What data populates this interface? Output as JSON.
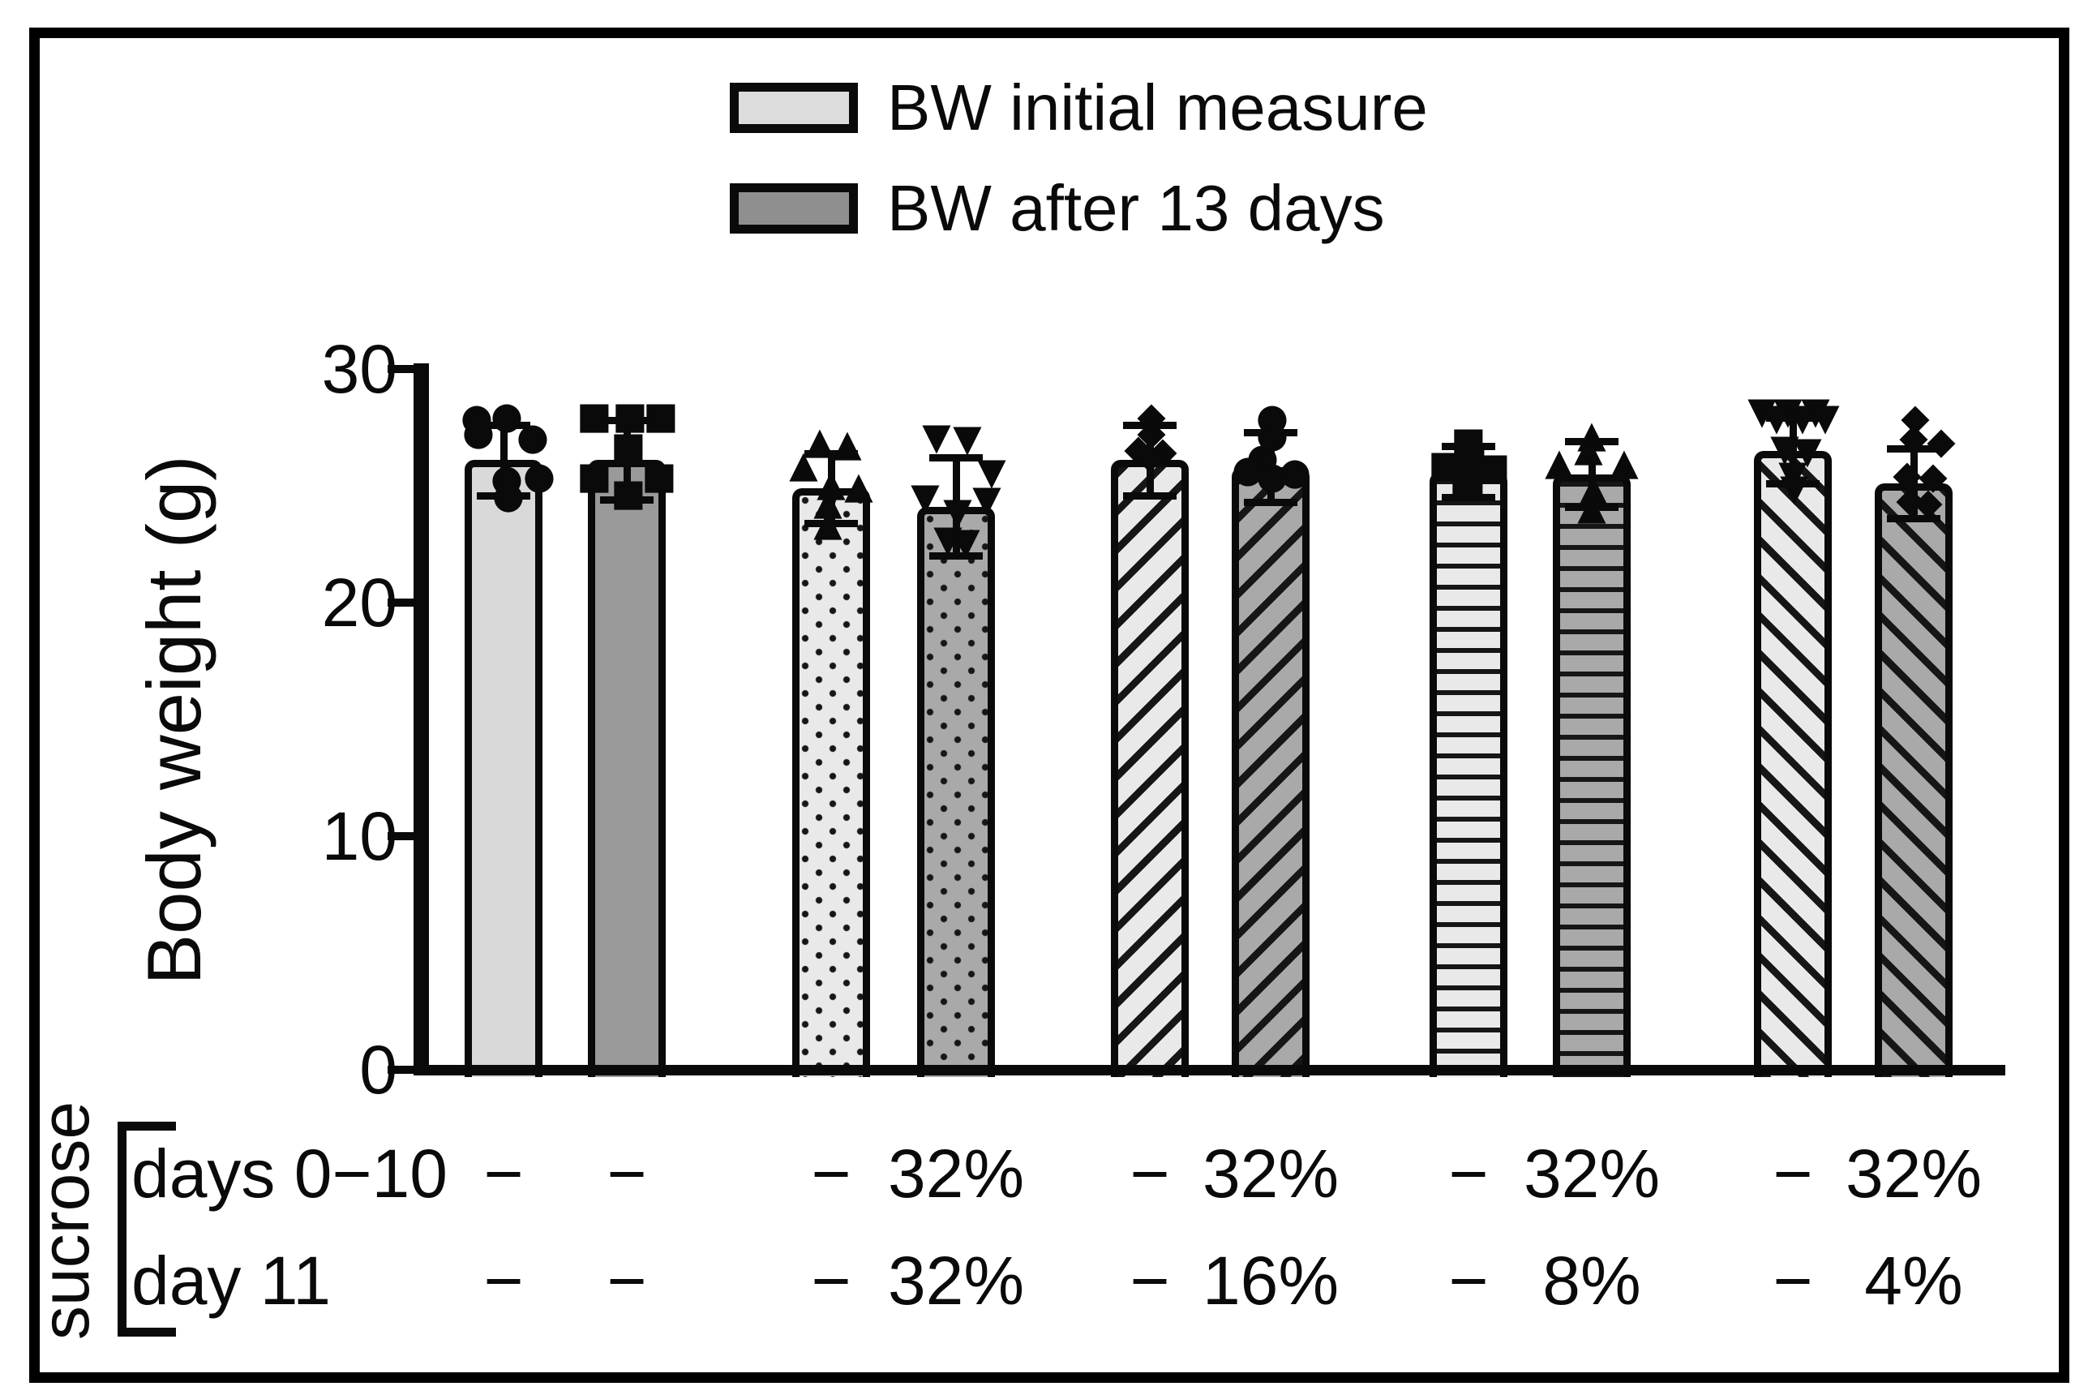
{
  "figure": {
    "kind": "grouped bar chart with scatter overlay",
    "background": "#ffffff",
    "frame_color": "#000000"
  },
  "colors": {
    "ink": "#0a0a0a",
    "light_fill": "#d9d9d9",
    "dark_fill": "#9a9a9a",
    "light_pattern_fill": "#e9e9e9",
    "dark_pattern_fill": "#a9a9a9",
    "legend_light_swatch": "#dcdcdc",
    "legend_dark_swatch": "#8f8f8f"
  },
  "legend": {
    "items": [
      {
        "label": "BW initial measure",
        "swatch_hex": "#dcdcdc",
        "swatch_name": "light-gray-bar-swatch"
      },
      {
        "label": "BW after 13 days",
        "swatch_hex": "#8f8f8f",
        "swatch_name": "dark-gray-bar-swatch"
      }
    ]
  },
  "marker_glyphs": {
    "circle": "●",
    "square": "■",
    "triangle-up": "▲",
    "triangle-down": "▼",
    "diamond": "◆"
  },
  "chart_data": {
    "type": "bar",
    "title": "",
    "xlabel": "",
    "ylabel": "Body weight (g)",
    "ylim": [
      0,
      30
    ],
    "yticks": [
      0,
      10,
      20,
      30
    ],
    "grid": false,
    "legend_position": "top-center",
    "series": [
      "BW initial measure",
      "BW after 13 days"
    ],
    "bars": [
      {
        "group": 1,
        "series": "BW initial measure",
        "mean": 26.1,
        "sd": 1.5,
        "fill": "light",
        "pattern": "solid",
        "marker": "circle",
        "points": [
          [
            27.9,
            -33
          ],
          [
            28.0,
            4
          ],
          [
            27.3,
            -31
          ],
          [
            27.1,
            36
          ],
          [
            25.3,
            4
          ],
          [
            24.6,
            6
          ],
          [
            25.4,
            44
          ]
        ]
      },
      {
        "group": 1,
        "series": "BW after 13 days",
        "mean": 26.1,
        "sd": 1.7,
        "fill": "dark",
        "pattern": "solid",
        "marker": "square",
        "points": [
          [
            28.0,
            -40
          ],
          [
            28.0,
            4
          ],
          [
            28.0,
            42
          ],
          [
            26.7,
            2
          ],
          [
            25.4,
            -40
          ],
          [
            25.4,
            40
          ],
          [
            24.7,
            2
          ]
        ]
      },
      {
        "group": 2,
        "series": "BW initial measure",
        "mean": 24.9,
        "sd": 1.5,
        "fill": "light",
        "pattern": "dots",
        "marker": "triangle-up",
        "points": [
          [
            26.9,
            -14
          ],
          [
            26.8,
            20
          ],
          [
            25.9,
            -34
          ],
          [
            25.1,
            0
          ],
          [
            25.0,
            34
          ],
          [
            24.3,
            -4
          ],
          [
            23.4,
            -4
          ]
        ]
      },
      {
        "group": 2,
        "series": "BW after 13 days",
        "mean": 24.1,
        "sd": 2.1,
        "fill": "dark",
        "pattern": "dots",
        "marker": "triangle-down",
        "points": [
          [
            27.1,
            -24
          ],
          [
            27.0,
            14
          ],
          [
            25.6,
            44
          ],
          [
            24.5,
            -38
          ],
          [
            24.4,
            38
          ],
          [
            23.9,
            2
          ],
          [
            22.7,
            -10
          ],
          [
            22.6,
            12
          ]
        ]
      },
      {
        "group": 3,
        "series": "BW initial measure",
        "mean": 26.1,
        "sd": 1.5,
        "fill": "light",
        "pattern": "hatch-forward",
        "marker": "diamond",
        "points": [
          [
            28.0,
            2
          ],
          [
            27.3,
            2
          ],
          [
            26.6,
            -14
          ],
          [
            26.5,
            16
          ],
          [
            26.3,
            0
          ]
        ]
      },
      {
        "group": 3,
        "series": "BW after 13 days",
        "mean": 25.8,
        "sd": 1.5,
        "fill": "dark",
        "pattern": "hatch-forward",
        "marker": "circle",
        "points": [
          [
            27.9,
            2
          ],
          [
            27.2,
            2
          ],
          [
            26.2,
            -10
          ],
          [
            25.7,
            -28
          ],
          [
            25.6,
            30
          ],
          [
            25.4,
            2
          ]
        ]
      },
      {
        "group": 4,
        "series": "BW initial measure",
        "mean": 25.6,
        "sd": 1.1,
        "fill": "light",
        "pattern": "horizontal-lines",
        "marker": "square",
        "points": [
          [
            26.9,
            0
          ],
          [
            26.3,
            2
          ],
          [
            25.9,
            -28
          ],
          [
            25.8,
            30
          ],
          [
            25.3,
            0
          ],
          [
            25.2,
            -2
          ]
        ]
      },
      {
        "group": 4,
        "series": "BW after 13 days",
        "mean": 25.5,
        "sd": 1.4,
        "fill": "dark",
        "pattern": "horizontal-lines",
        "marker": "triangle-up",
        "points": [
          [
            27.2,
            0
          ],
          [
            26.6,
            -4
          ],
          [
            26.0,
            -40
          ],
          [
            26.0,
            40
          ],
          [
            24.9,
            2
          ],
          [
            24.1,
            0
          ]
        ]
      },
      {
        "group": 5,
        "series": "BW initial measure",
        "mean": 26.5,
        "sd": 1.4,
        "fill": "light",
        "pattern": "hatch-back",
        "marker": "triangle-down",
        "points": [
          [
            28.2,
            -38
          ],
          [
            28.2,
            -6
          ],
          [
            28.2,
            28
          ],
          [
            27.9,
            -20
          ],
          [
            27.9,
            12
          ],
          [
            27.9,
            40
          ],
          [
            26.6,
            -10
          ],
          [
            26.5,
            18
          ],
          [
            25.5,
            0
          ],
          [
            24.9,
            2
          ]
        ]
      },
      {
        "group": 5,
        "series": "BW after 13 days",
        "mean": 25.1,
        "sd": 1.5,
        "fill": "dark",
        "pattern": "hatch-back",
        "marker": "diamond",
        "points": [
          [
            27.9,
            2
          ],
          [
            27.1,
            0
          ],
          [
            26.9,
            34
          ],
          [
            25.5,
            -8
          ],
          [
            25.4,
            24
          ],
          [
            24.4,
            -4
          ],
          [
            24.3,
            18
          ]
        ]
      }
    ],
    "x_table": {
      "group_label": "sucrose",
      "rows": [
        {
          "label": "days 0−10",
          "values": [
            "−",
            "−",
            "−",
            "32%",
            "−",
            "32%",
            "−",
            "32%",
            "−",
            "32%"
          ]
        },
        {
          "label": "day 11",
          "values": [
            "−",
            "−",
            "−",
            "32%",
            "−",
            "16%",
            "−",
            "8%",
            "−",
            "4%"
          ]
        }
      ]
    }
  }
}
